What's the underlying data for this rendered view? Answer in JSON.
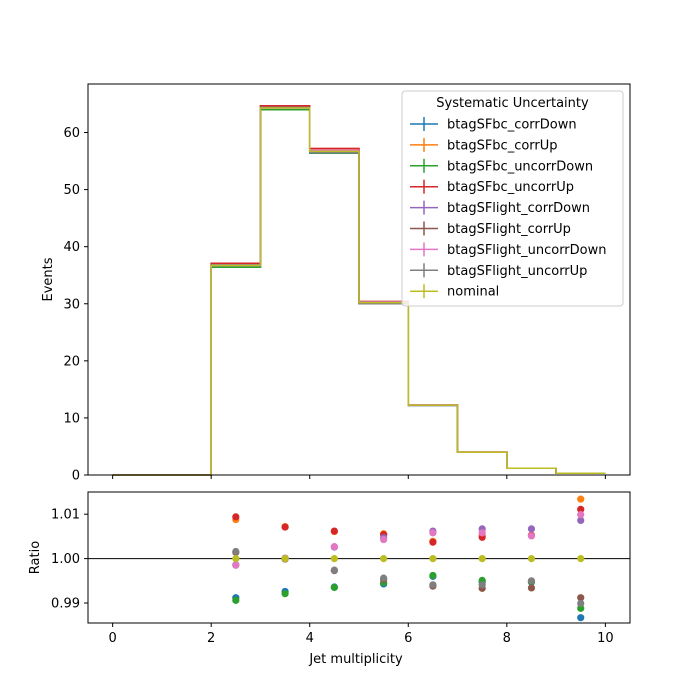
{
  "chart_data": [
    {
      "type": "histogram-step",
      "title": "",
      "xlabel": "",
      "ylabel": "Events",
      "xlim": [
        -0.5,
        10.5
      ],
      "ylim": [
        0,
        68.5
      ],
      "xticks": [
        0,
        2,
        4,
        6,
        8,
        10
      ],
      "yticks": [
        0,
        10,
        20,
        30,
        40,
        50,
        60
      ],
      "tick_labels_x": [],
      "bin_edges": [
        0,
        1,
        2,
        3,
        4,
        5,
        6,
        7,
        8,
        9,
        10
      ],
      "legend": {
        "title": "Systematic Uncertainty",
        "placement": "top-right"
      },
      "series": [
        {
          "name": "btagSFbc_corrDown",
          "color": "#1f77b4",
          "values": [
            0,
            0,
            36.4,
            64.0,
            56.4,
            30.0,
            12.2,
            3.98,
            1.18,
            0.3
          ]
        },
        {
          "name": "btagSFbc_corrUp",
          "color": "#ff7f0e",
          "values": [
            0,
            0,
            37.1,
            64.7,
            57.2,
            30.4,
            12.3,
            4.01,
            1.19,
            0.31
          ]
        },
        {
          "name": "btagSFbc_uncorrDown",
          "color": "#2ca02c",
          "values": [
            0,
            0,
            36.4,
            64.0,
            56.4,
            30.0,
            12.2,
            3.98,
            1.18,
            0.3
          ]
        },
        {
          "name": "btagSFbc_uncorrUp",
          "color": "#d62728",
          "values": [
            0,
            0,
            37.1,
            64.7,
            57.2,
            30.4,
            12.3,
            4.01,
            1.19,
            0.31
          ]
        },
        {
          "name": "btagSFlight_corrDown",
          "color": "#9467bd",
          "values": [
            0,
            0,
            36.7,
            64.3,
            56.5,
            30.0,
            12.2,
            3.98,
            1.18,
            0.3
          ]
        },
        {
          "name": "btagSFlight_corrUp",
          "color": "#8c564b",
          "values": [
            0,
            0,
            36.8,
            64.4,
            56.9,
            30.3,
            12.3,
            4.01,
            1.19,
            0.3
          ]
        },
        {
          "name": "btagSFlight_uncorrDown",
          "color": "#e377c2",
          "values": [
            0,
            0,
            36.7,
            64.3,
            56.9,
            30.3,
            12.3,
            4.01,
            1.19,
            0.31
          ]
        },
        {
          "name": "btagSFlight_uncorrUp",
          "color": "#7f7f7f",
          "values": [
            0,
            0,
            36.8,
            64.4,
            56.5,
            30.0,
            12.2,
            3.98,
            1.18,
            0.3
          ]
        },
        {
          "name": "nominal",
          "color": "#bcbd22",
          "values": [
            0,
            0,
            36.7,
            64.3,
            56.7,
            30.2,
            12.25,
            3.99,
            1.185,
            0.305
          ]
        }
      ]
    },
    {
      "type": "scatter",
      "title": "",
      "xlabel": "Jet multiplicity",
      "ylabel": "Ratio",
      "xlim": [
        -0.5,
        10.5
      ],
      "ylim": [
        0.9855,
        1.015
      ],
      "xticks": [
        0,
        2,
        4,
        6,
        8,
        10
      ],
      "yticks": [
        0.99,
        1.0,
        1.01
      ],
      "ytick_labels": [
        "0.99",
        "1.00",
        "1.01"
      ],
      "reference_line": 1.0,
      "x": [
        2.5,
        3.5,
        4.5,
        5.5,
        6.5,
        7.5,
        8.5,
        9.5
      ],
      "series": [
        {
          "name": "btagSFbc_corrDown",
          "color": "#1f77b4",
          "values": [
            0.9912,
            0.9926,
            0.9936,
            0.9943,
            0.996,
            0.9947,
            0.9947,
            0.9867
          ]
        },
        {
          "name": "btagSFbc_corrUp",
          "color": "#ff7f0e",
          "values": [
            1.0088,
            1.0072,
            1.0061,
            1.0056,
            1.0039,
            1.0053,
            1.0053,
            1.0134
          ]
        },
        {
          "name": "btagSFbc_uncorrDown",
          "color": "#2ca02c",
          "values": [
            0.9906,
            0.9921,
            0.9935,
            0.9946,
            0.9962,
            0.9951,
            0.9948,
            0.9888
          ]
        },
        {
          "name": "btagSFbc_uncorrUp",
          "color": "#d62728",
          "values": [
            1.0094,
            1.0071,
            1.0062,
            1.0054,
            1.0037,
            1.0048,
            1.0052,
            1.0111
          ]
        },
        {
          "name": "btagSFlight_corrDown",
          "color": "#9467bd",
          "values": [
            0.9986,
            1.0001,
            1.0026,
            1.0047,
            1.0062,
            1.0067,
            1.0067,
            1.0086
          ]
        },
        {
          "name": "btagSFlight_corrUp",
          "color": "#8c564b",
          "values": [
            1.0014,
            0.9999,
            0.9973,
            0.9953,
            0.9938,
            0.9933,
            0.9934,
            0.9912
          ]
        },
        {
          "name": "btagSFlight_uncorrDown",
          "color": "#e377c2",
          "values": [
            0.9985,
            1.0001,
            1.0027,
            1.0043,
            1.0058,
            1.0058,
            1.0051,
            1.0099
          ]
        },
        {
          "name": "btagSFlight_uncorrUp",
          "color": "#7f7f7f",
          "values": [
            1.0016,
            1.0,
            0.9974,
            0.9956,
            0.9941,
            0.9941,
            0.995,
            0.9899
          ]
        },
        {
          "name": "nominal",
          "color": "#bcbd22",
          "values": [
            1.0,
            1.0,
            1.0,
            1.0,
            1.0,
            1.0,
            1.0,
            1.0
          ]
        }
      ]
    }
  ]
}
